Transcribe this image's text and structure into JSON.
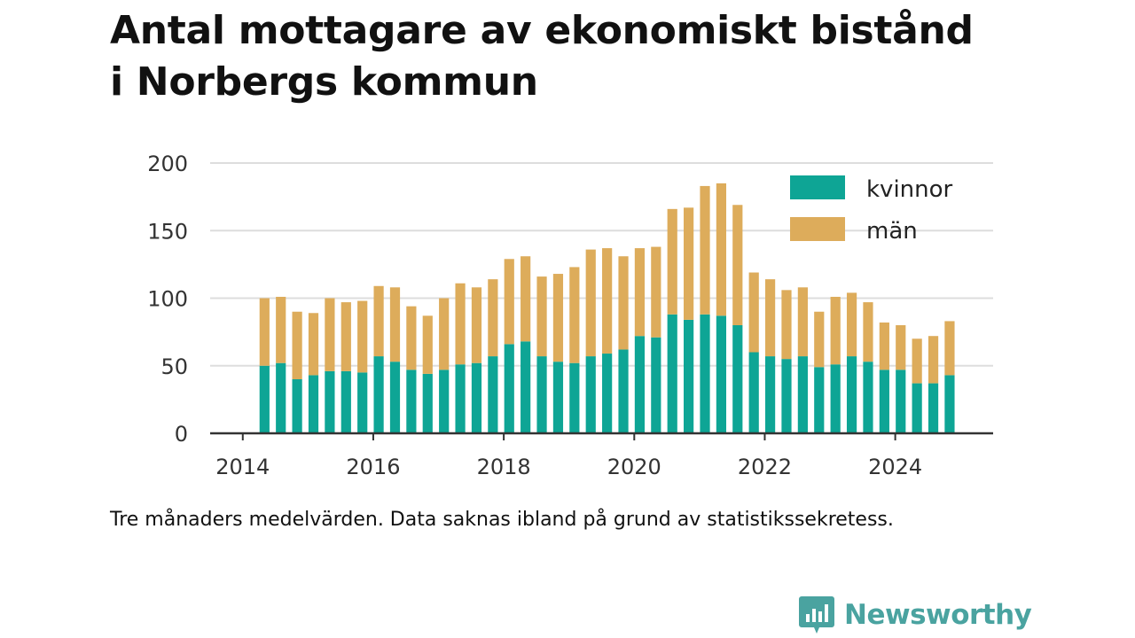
{
  "title_lines": [
    "Antal mottagare av ekonomiskt bistånd",
    "i Norbergs kommun"
  ],
  "note": "Tre månaders medelvärden. Data saknas ibland på grund av statistikssekretess.",
  "brand": {
    "name": "Newsworthy",
    "icon": "newsworthy-logo-icon",
    "color": "#4aa3a0"
  },
  "colors": {
    "kvinnor": "#0ea595",
    "man": "#ddac5b",
    "grid": "#dddddd",
    "axis": "#333333"
  },
  "chart_data": {
    "type": "bar",
    "stacked": true,
    "x_axis": {
      "type": "date",
      "min": "2013-07",
      "max": "2025-07",
      "ticks": [
        "2014",
        "2016",
        "2018",
        "2020",
        "2022",
        "2024"
      ]
    },
    "y_axis": {
      "min": 0,
      "max": 200,
      "ticks": [
        0,
        50,
        100,
        150,
        200
      ]
    },
    "grid": true,
    "legend_position": "top-right",
    "x": [
      "2014-05",
      "2014-08",
      "2014-11",
      "2015-02",
      "2015-05",
      "2015-08",
      "2015-11",
      "2016-02",
      "2016-05",
      "2016-08",
      "2016-11",
      "2017-02",
      "2017-05",
      "2017-08",
      "2017-11",
      "2018-02",
      "2018-05",
      "2018-08",
      "2018-11",
      "2019-02",
      "2019-05",
      "2019-08",
      "2019-11",
      "2020-02",
      "2020-05",
      "2020-08",
      "2020-11",
      "2021-02",
      "2021-05",
      "2021-08",
      "2021-11",
      "2022-02",
      "2022-05",
      "2022-08",
      "2022-11",
      "2023-02",
      "2023-05",
      "2023-08",
      "2023-11",
      "2024-02",
      "2024-05",
      "2024-08",
      "2024-11"
    ],
    "series": [
      {
        "name": "kvinnor",
        "values": [
          50,
          52,
          40,
          43,
          46,
          46,
          45,
          57,
          53,
          47,
          44,
          47,
          51,
          52,
          57,
          66,
          68,
          57,
          53,
          52,
          57,
          59,
          62,
          72,
          71,
          88,
          84,
          88,
          87,
          80,
          60,
          57,
          55,
          57,
          49,
          51,
          57,
          53,
          47,
          47,
          37,
          37,
          43
        ]
      },
      {
        "name": "män",
        "values": [
          50,
          49,
          50,
          46,
          54,
          51,
          53,
          52,
          55,
          47,
          43,
          53,
          60,
          56,
          57,
          63,
          63,
          59,
          65,
          71,
          79,
          78,
          69,
          65,
          67,
          78,
          83,
          95,
          98,
          89,
          59,
          57,
          51,
          51,
          41,
          50,
          47,
          44,
          35,
          33,
          33,
          35,
          40
        ]
      }
    ]
  }
}
